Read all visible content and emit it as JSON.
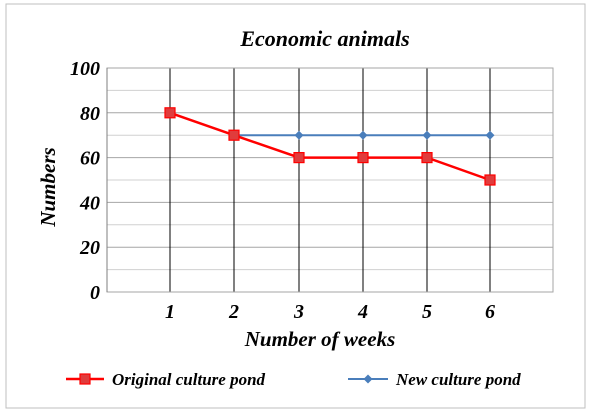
{
  "chart_data": {
    "type": "line",
    "title": "Economic animals",
    "xlabel": "Number of weeks",
    "ylabel": "Numbers",
    "categories": [
      "1",
      "2",
      "3",
      "4",
      "5",
      "6"
    ],
    "yticks": [
      "0",
      "20",
      "40",
      "60",
      "80",
      "100"
    ],
    "ylim": [
      0,
      100
    ],
    "grid": true,
    "legend_position": "bottom",
    "series": [
      {
        "name": "Original culture pond",
        "color": "#ff0000",
        "marker": "square",
        "values": [
          80,
          70,
          60,
          60,
          60,
          50
        ]
      },
      {
        "name": "New culture pond",
        "color": "#4a7ebb",
        "marker": "diamond",
        "values": [
          null,
          70,
          70,
          70,
          70,
          70
        ]
      }
    ]
  }
}
